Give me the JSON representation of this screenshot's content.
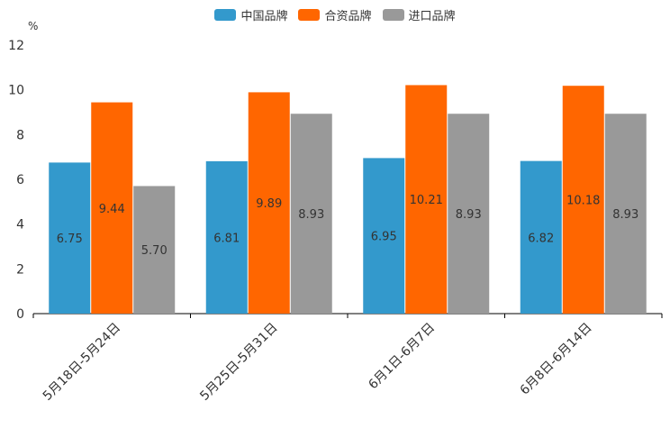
{
  "chart_data": {
    "type": "bar",
    "title": "",
    "unit": "%",
    "xlabel": "",
    "ylabel": "%",
    "ylim": [
      0,
      12
    ],
    "yticks": [
      0,
      2,
      4,
      6,
      8,
      10,
      12
    ],
    "legend_position": "top-center",
    "categories": [
      "5月18日-5月24日",
      "5月25日-5月31日",
      "6月1日-6月7日",
      "6月8日-6月14日"
    ],
    "series": [
      {
        "name": "中国品牌",
        "color": "#3399cc",
        "values": [
          6.75,
          6.81,
          6.95,
          6.82
        ],
        "labels": [
          "6.75",
          "6.81",
          "6.95",
          "6.82"
        ]
      },
      {
        "name": "合资品牌",
        "color": "#ff6600",
        "values": [
          9.44,
          9.89,
          10.21,
          10.18
        ],
        "labels": [
          "9.44",
          "9.89",
          "10.21",
          "10.18"
        ]
      },
      {
        "name": "进口品牌",
        "color": "#999999",
        "values": [
          5.7,
          8.93,
          8.93,
          8.93
        ],
        "labels": [
          "5.70",
          "8.93",
          "8.93",
          "8.93"
        ]
      }
    ]
  }
}
